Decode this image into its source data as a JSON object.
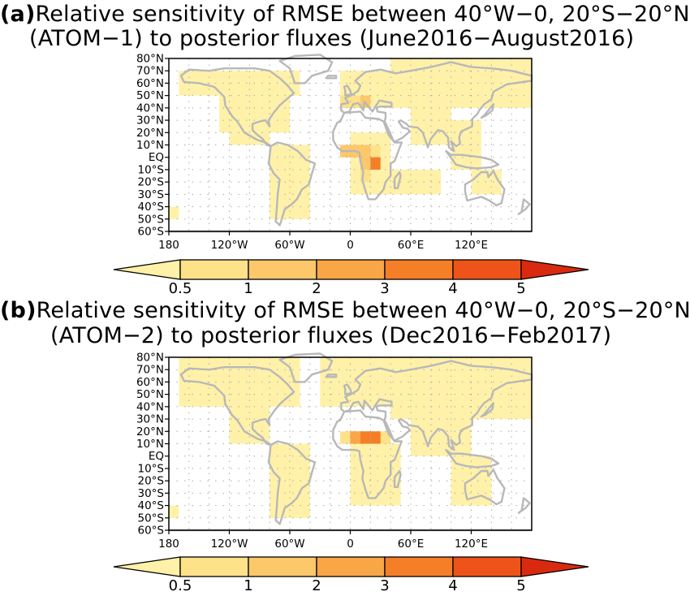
{
  "panels": [
    {
      "letter": "(a)",
      "title_line1": "Relative sensitivity of RMSE between 40°W−0, 20°S−20°N",
      "title_line2": "(ATOM−1) to posterior fluxes (June2016−August2016)"
    },
    {
      "letter": "(b)",
      "title_line1": "Relative sensitivity of RMSE between 40°W−0, 20°S−20°N",
      "title_line2": "(ATOM−2) to posterior fluxes (Dec2016−Feb2017)"
    }
  ],
  "axes": {
    "lat_ticks": [
      "80°N",
      "70°N",
      "60°N",
      "50°N",
      "40°N",
      "30°N",
      "20°N",
      "10°N",
      "EQ",
      "10°S",
      "20°S",
      "30°S",
      "40°S",
      "50°S",
      "60°S"
    ],
    "lon_ticks": [
      "180",
      "120°W",
      "60°W",
      "0",
      "60°E",
      "120°E"
    ],
    "lat_range": [
      -60,
      80
    ],
    "lon_range": [
      -180,
      180
    ],
    "gridlines": "dotted, 20° lon × 10° lat"
  },
  "colorbar": {
    "levels": [
      "0.5",
      "1",
      "2",
      "3",
      "4",
      "5"
    ],
    "colors": [
      "#fff1a8",
      "#fde28a",
      "#fcc86a",
      "#f9a646",
      "#f57f27",
      "#ee5419",
      "#d92a10"
    ],
    "extends": "both"
  },
  "map_style": {
    "coastline_color": "#b8b8b8",
    "grid_color": "#aaaaaa"
  }
}
